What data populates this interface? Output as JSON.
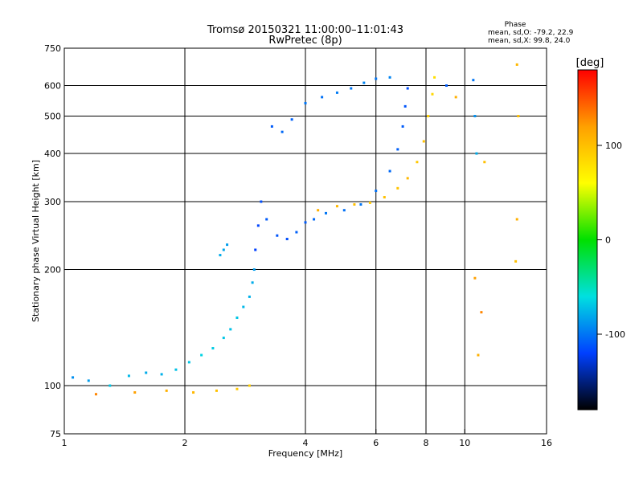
{
  "chart_data": {
    "type": "scatter",
    "title": "Tromsø 20150321 11:00:00–11:01:43",
    "subtitle": "RwPretec (8p)",
    "xlabel": "Frequency [MHz]",
    "ylabel": "Stationary phase Virtual Height [km]",
    "x_scale": "log",
    "y_scale": "log",
    "xlim": [
      1,
      16
    ],
    "ylim": [
      75,
      750
    ],
    "x_ticks": [
      1,
      2,
      4,
      6,
      8,
      10,
      16
    ],
    "y_ticks": [
      75,
      100,
      200,
      300,
      400,
      500,
      600,
      750
    ],
    "x_gridlines": [
      2,
      4,
      6,
      8,
      10
    ],
    "y_gridlines": [
      100,
      200,
      300,
      400,
      500,
      600
    ],
    "grid": true,
    "phase_stats": {
      "title": "Phase",
      "line1": "mean, sd,O: -79.2, 22.9",
      "line2": "mean, sd,X:  99.8, 24.0"
    },
    "colorbar": {
      "label": "[deg]",
      "range": [
        -180,
        180
      ],
      "ticks": [
        100,
        0,
        -100
      ],
      "colors": [
        "#ff0000",
        "#ffa000",
        "#ffff00",
        "#00e000",
        "#00e0e0",
        "#0040ff",
        "#000000"
      ]
    },
    "series": [
      {
        "points": [
          [
            1.05,
            105,
            -90
          ],
          [
            1.15,
            103,
            -85
          ],
          [
            1.3,
            100,
            -70
          ],
          [
            1.45,
            106,
            -75
          ],
          [
            1.6,
            108,
            -80
          ],
          [
            1.75,
            107,
            -78
          ],
          [
            1.9,
            110,
            -72
          ],
          [
            2.05,
            115,
            -70
          ],
          [
            2.2,
            120,
            -65
          ],
          [
            2.35,
            125,
            -68
          ],
          [
            2.5,
            133,
            -70
          ],
          [
            2.6,
            140,
            -72
          ],
          [
            2.7,
            150,
            -70
          ],
          [
            2.8,
            160,
            -75
          ],
          [
            2.9,
            170,
            -78
          ],
          [
            2.95,
            185,
            -80
          ],
          [
            2.98,
            200,
            -85
          ]
        ]
      },
      {
        "points": [
          [
            1.2,
            95,
            130
          ],
          [
            1.5,
            96,
            120
          ],
          [
            1.8,
            97,
            110
          ],
          [
            2.1,
            96,
            105
          ],
          [
            2.4,
            97,
            100
          ],
          [
            2.7,
            98,
            95
          ],
          [
            2.9,
            100,
            90
          ]
        ]
      },
      {
        "points": [
          [
            2.45,
            218,
            -80
          ],
          [
            2.5,
            225,
            -82
          ],
          [
            2.55,
            232,
            -85
          ]
        ]
      },
      {
        "points": [
          [
            3.0,
            225,
            -120
          ],
          [
            3.05,
            260,
            -118
          ],
          [
            3.1,
            300,
            -115
          ],
          [
            3.2,
            270,
            -110
          ],
          [
            3.4,
            245,
            -112
          ],
          [
            3.6,
            240,
            -115
          ],
          [
            3.8,
            250,
            -108
          ],
          [
            4.0,
            265,
            -110
          ],
          [
            4.2,
            270,
            -105
          ],
          [
            4.5,
            280,
            -100
          ],
          [
            5.0,
            285,
            -102
          ],
          [
            5.5,
            295,
            -100
          ],
          [
            6.0,
            320,
            -102
          ],
          [
            6.5,
            360,
            -105
          ],
          [
            6.8,
            410,
            -108
          ],
          [
            7.0,
            470,
            -110
          ],
          [
            7.1,
            530,
            -112
          ],
          [
            7.2,
            590,
            -115
          ]
        ]
      },
      {
        "points": [
          [
            4.3,
            285,
            110
          ],
          [
            4.8,
            292,
            105
          ],
          [
            5.3,
            295,
            100
          ],
          [
            5.8,
            298,
            95
          ],
          [
            6.3,
            308,
            100
          ],
          [
            6.8,
            325,
            98
          ],
          [
            7.2,
            345,
            105
          ],
          [
            7.6,
            380,
            95
          ],
          [
            7.9,
            430,
            100
          ],
          [
            8.1,
            500,
            90
          ],
          [
            8.3,
            570,
            85
          ],
          [
            8.4,
            630,
            80
          ]
        ]
      },
      {
        "points": [
          [
            3.3,
            470,
            -110
          ],
          [
            3.5,
            455,
            -105
          ],
          [
            3.7,
            490,
            -108
          ],
          [
            4.0,
            540,
            -100
          ],
          [
            4.4,
            560,
            -102
          ],
          [
            4.8,
            575,
            -98
          ],
          [
            5.2,
            590,
            -100
          ],
          [
            5.6,
            610,
            -95
          ],
          [
            6.0,
            625,
            -100
          ],
          [
            6.5,
            630,
            -95
          ]
        ]
      },
      {
        "points": [
          [
            9.0,
            600,
            -110
          ],
          [
            9.5,
            560,
            110
          ],
          [
            10.5,
            620,
            -100
          ],
          [
            10.6,
            500,
            -90
          ],
          [
            10.7,
            400,
            -80
          ],
          [
            11.2,
            380,
            100
          ],
          [
            10.6,
            190,
            120
          ],
          [
            11.0,
            155,
            130
          ],
          [
            10.8,
            120,
            110
          ],
          [
            13.5,
            680,
            105
          ],
          [
            13.6,
            500,
            100
          ],
          [
            13.5,
            270,
            110
          ],
          [
            13.4,
            210,
            100
          ]
        ]
      }
    ]
  }
}
